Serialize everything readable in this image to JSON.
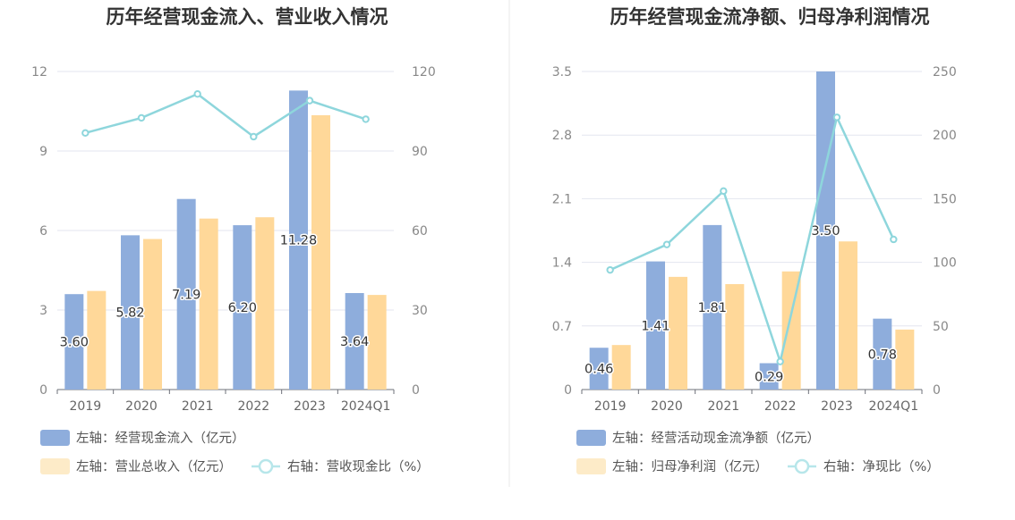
{
  "chart_data": [
    {
      "type": "bar",
      "title": "历年经营现金流入、营业收入情况",
      "categories": [
        "2019",
        "2020",
        "2021",
        "2022",
        "2023",
        "2024Q1"
      ],
      "left_axis": {
        "ylim": [
          0,
          12
        ],
        "ticks": [
          "0",
          "3",
          "6",
          "9",
          "12"
        ]
      },
      "right_axis": {
        "ylim": [
          0,
          120
        ],
        "ticks": [
          "0",
          "30",
          "60",
          "90",
          "120"
        ]
      },
      "series": [
        {
          "name": "左轴：经营现金流入（亿元）",
          "axis": "left",
          "kind": "bar",
          "color": "#8eaddc",
          "values": [
            3.6,
            5.82,
            7.19,
            6.2,
            11.28,
            3.64
          ],
          "labels": [
            "3.60",
            "5.82",
            "7.19",
            "6.20",
            "11.28",
            "3.64"
          ]
        },
        {
          "name": "左轴：营业总收入（亿元）",
          "axis": "left",
          "kind": "bar",
          "color": "#ffd899",
          "values": [
            3.72,
            5.68,
            6.45,
            6.5,
            10.35,
            3.57
          ]
        },
        {
          "name": "右轴：营收现金比（%）",
          "axis": "right",
          "kind": "line",
          "color": "#8ed6dc",
          "values": [
            96.8,
            102.5,
            111.5,
            95.4,
            109.0,
            102.0
          ]
        }
      ],
      "grid": true,
      "legend_position": "bottom-left"
    },
    {
      "type": "bar",
      "title": "历年经营现金流净额、归母净利润情况",
      "categories": [
        "2019",
        "2020",
        "2021",
        "2022",
        "2023",
        "2024Q1"
      ],
      "left_axis": {
        "ylim": [
          0,
          3.5
        ],
        "ticks": [
          "0",
          "0.7",
          "1.4",
          "2.1",
          "2.8",
          "3.5"
        ]
      },
      "right_axis": {
        "ylim": [
          0,
          250
        ],
        "ticks": [
          "0",
          "50",
          "100",
          "150",
          "200",
          "250"
        ]
      },
      "series": [
        {
          "name": "左轴：经营活动现金流净额（亿元）",
          "axis": "left",
          "kind": "bar",
          "color": "#8eaddc",
          "values": [
            0.46,
            1.41,
            1.81,
            0.29,
            3.5,
            0.78
          ],
          "labels": [
            "0.46",
            "1.41",
            "1.81",
            "0.29",
            "3.50",
            "0.78"
          ]
        },
        {
          "name": "左轴：归母净利润（亿元）",
          "axis": "left",
          "kind": "bar",
          "color": "#ffd899",
          "values": [
            0.49,
            1.24,
            1.16,
            1.3,
            1.63,
            0.66
          ]
        },
        {
          "name": "右轴：净现比（%）",
          "axis": "right",
          "kind": "line",
          "color": "#8ed6dc",
          "values": [
            94.0,
            114.0,
            156.0,
            22.0,
            214.0,
            118.0
          ]
        }
      ],
      "grid": true,
      "legend_position": "bottom-left"
    }
  ]
}
